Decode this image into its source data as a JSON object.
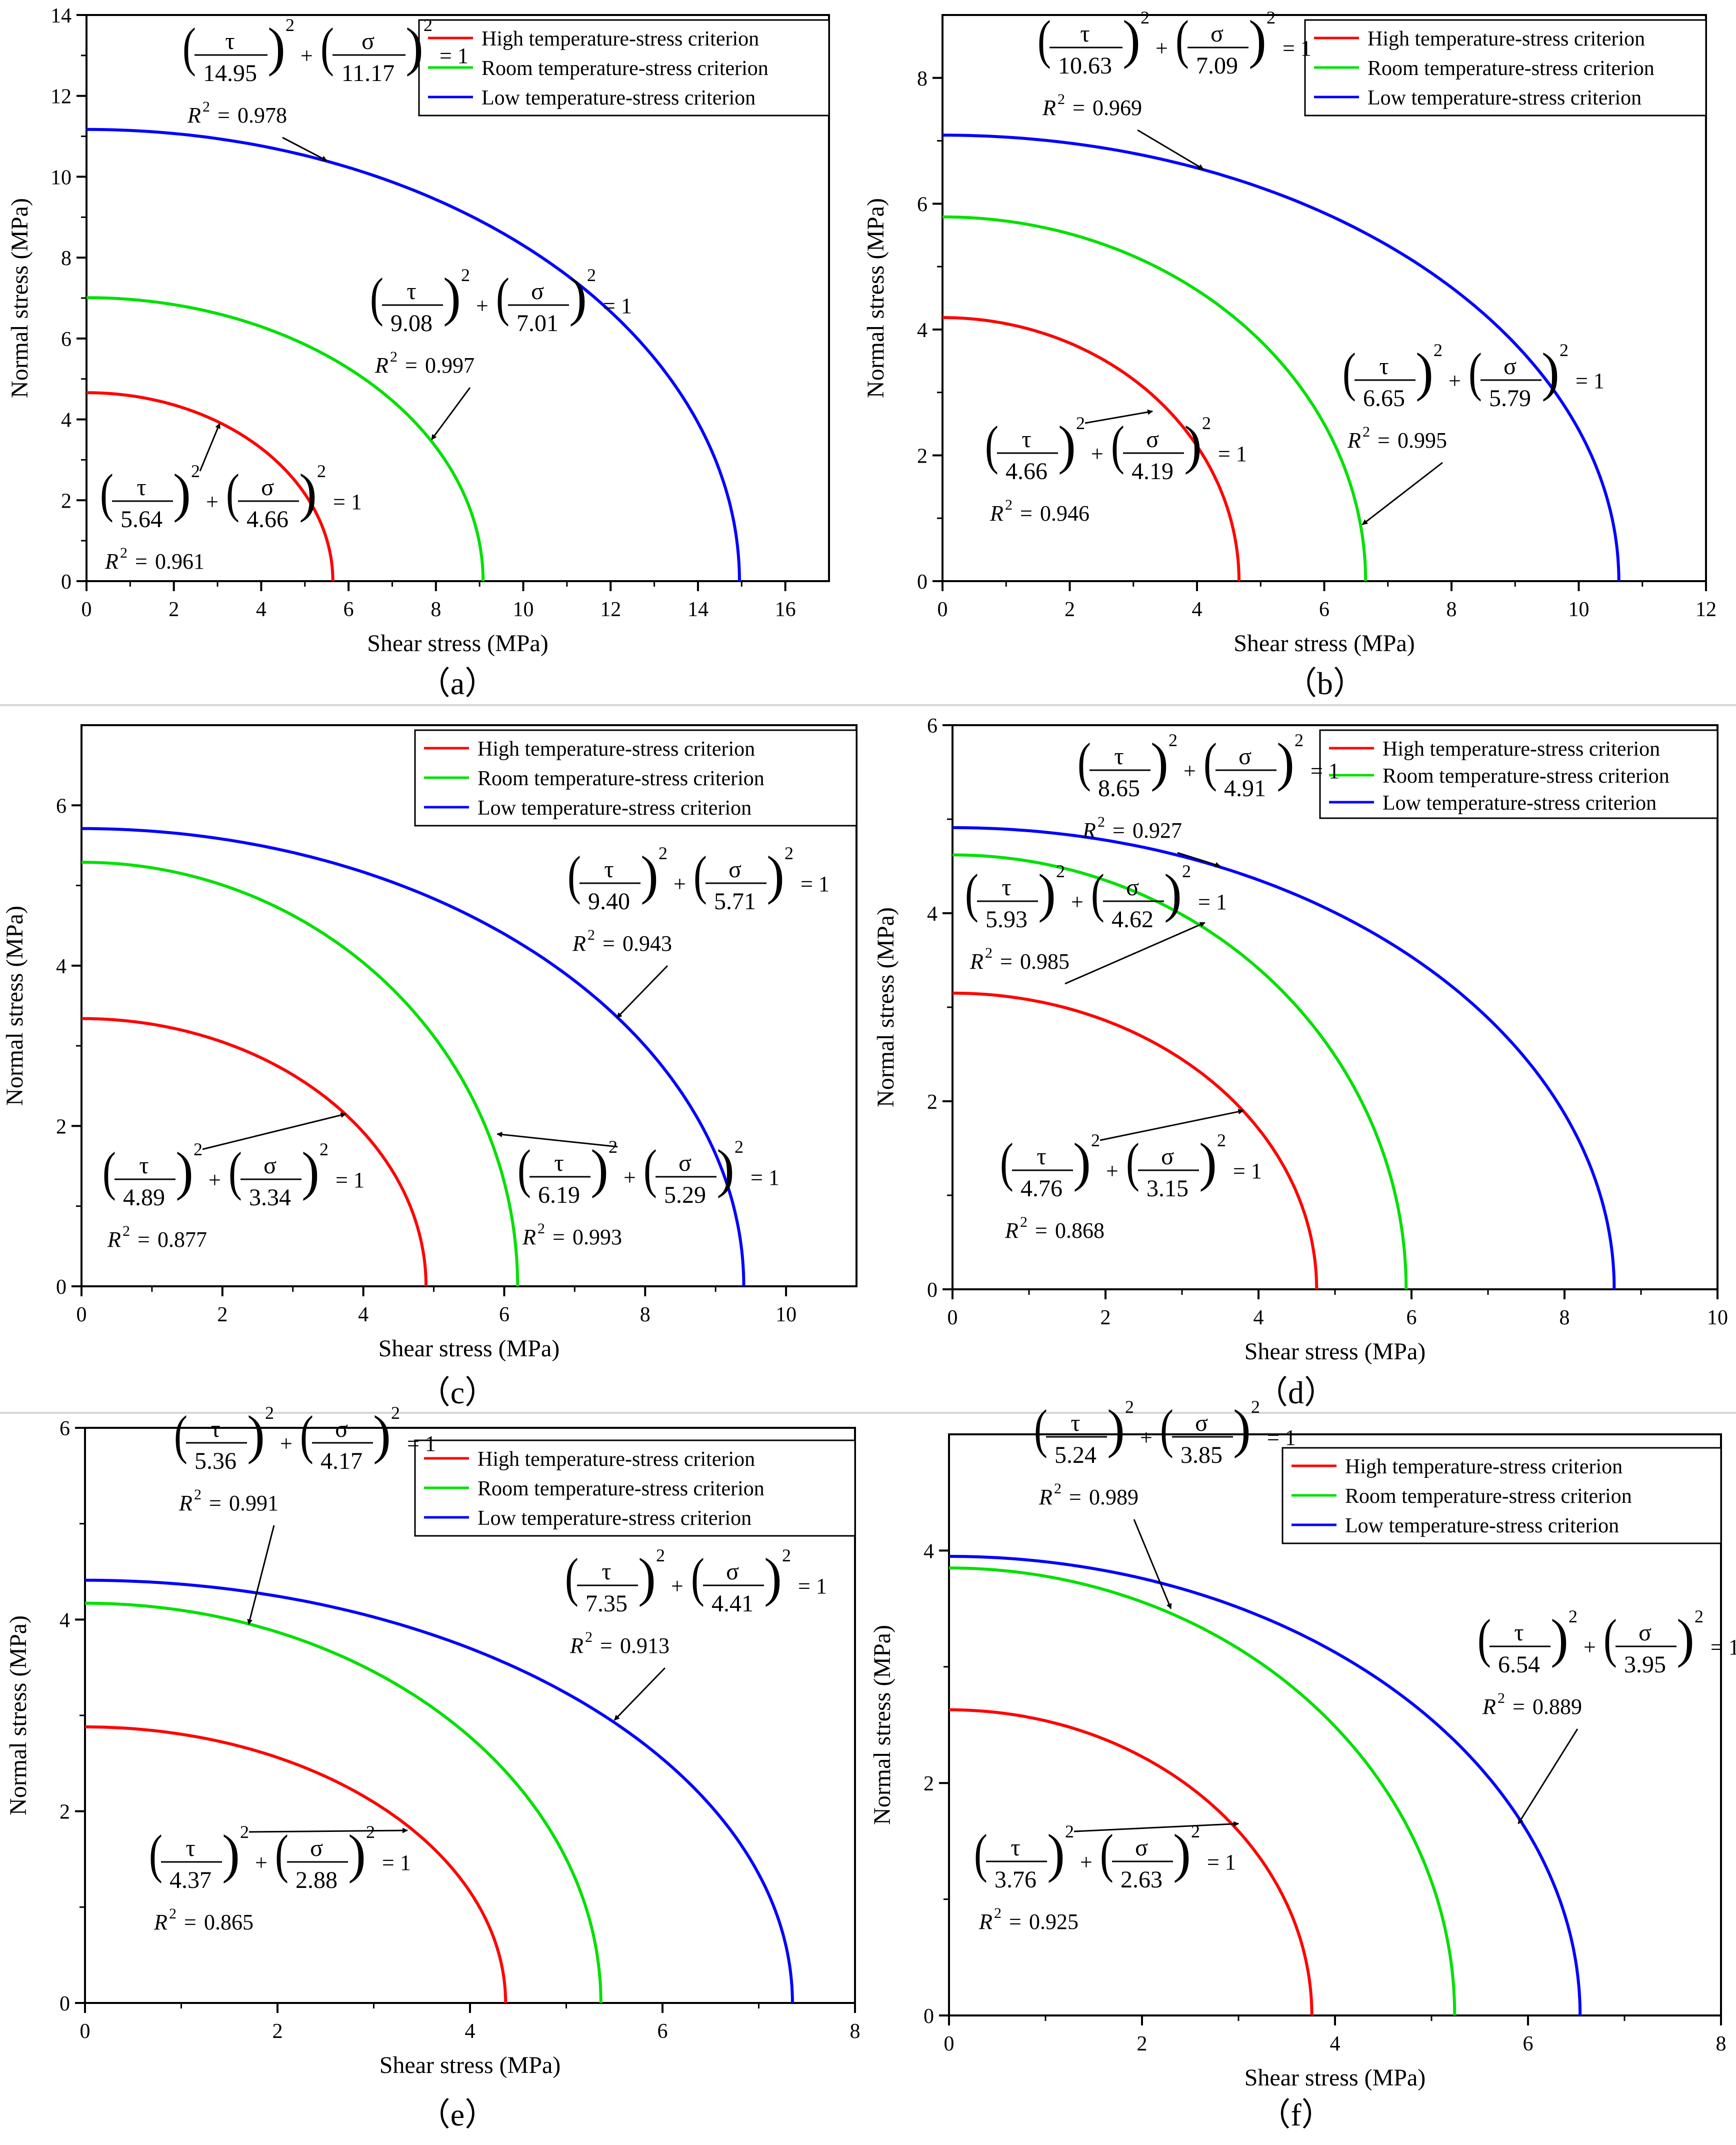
{
  "figure": {
    "legend_labels": [
      "High temperature-stress criterion",
      "Room temperature-stress criterion",
      "Low temperature-stress criterion"
    ],
    "series_colors": [
      "#ff0000",
      "#00e000",
      "#0000ff"
    ],
    "equation_template": {
      "tau": "τ",
      "sigma": "σ",
      "plus": "+",
      "equals": "= 1",
      "exponent": "2",
      "r2_prefix": "R",
      "r2_sup": "2",
      "r2_equals": "="
    }
  },
  "chart_data": [
    {
      "type": "line",
      "panel_label": "（a）",
      "title": "",
      "xlabel": "Shear stress (MPa)",
      "ylabel": "Normal stress (MPa)",
      "xlim": [
        0,
        17
      ],
      "ylim": [
        0,
        14
      ],
      "xticks": [
        0,
        2,
        4,
        6,
        8,
        10,
        12,
        14,
        16
      ],
      "yticks": [
        0,
        2,
        4,
        6,
        8,
        10,
        12,
        14
      ],
      "legend_position": "top-right",
      "series": [
        {
          "name": "High temperature-stress criterion",
          "tau_max": 5.64,
          "sigma_max": 4.66,
          "tau_text": "5.64",
          "sigma_text": "4.66",
          "r2": "0.961",
          "arrow_point": [
            3.05,
            3.9
          ]
        },
        {
          "name": "Room temperature-stress criterion",
          "tau_max": 9.08,
          "sigma_max": 7.01,
          "tau_text": "9.08",
          "sigma_text": "7.01",
          "r2": "0.997",
          "arrow_point": [
            7.9,
            3.5
          ]
        },
        {
          "name": "Low temperature-stress criterion",
          "tau_max": 14.95,
          "sigma_max": 11.17,
          "tau_text": "14.95",
          "sigma_text": "11.17",
          "r2": "0.978",
          "arrow_point": [
            5.5,
            10.4
          ]
        }
      ]
    },
    {
      "type": "line",
      "panel_label": "（b）",
      "title": "",
      "xlabel": "Shear stress (MPa)",
      "ylabel": "Normal stress (MPa)",
      "xlim": [
        0,
        12
      ],
      "ylim": [
        0,
        9
      ],
      "xticks": [
        0,
        2,
        4,
        6,
        8,
        10,
        12
      ],
      "yticks": [
        0,
        2,
        4,
        6,
        8
      ],
      "legend_position": "top-right",
      "series": [
        {
          "name": "High temperature-stress criterion",
          "tau_max": 4.66,
          "sigma_max": 4.19,
          "tau_text": "4.66",
          "sigma_text": "4.19",
          "r2": "0.946",
          "arrow_point": [
            3.3,
            2.7
          ]
        },
        {
          "name": "Room temperature-stress criterion",
          "tau_max": 6.65,
          "sigma_max": 5.79,
          "tau_text": "6.65",
          "sigma_text": "5.79",
          "r2": "0.995",
          "arrow_point": [
            6.6,
            0.9
          ]
        },
        {
          "name": "Low temperature-stress criterion",
          "tau_max": 10.63,
          "sigma_max": 7.09,
          "tau_text": "10.63",
          "sigma_text": "7.09",
          "r2": "0.969",
          "arrow_point": [
            4.1,
            6.55
          ]
        }
      ]
    },
    {
      "type": "line",
      "panel_label": "（c）",
      "title": "",
      "xlabel": "Shear stress (MPa)",
      "ylabel": "Normal stress (MPa)",
      "xlim": [
        0,
        11
      ],
      "ylim": [
        0,
        7
      ],
      "xticks": [
        0,
        2,
        4,
        6,
        8,
        10
      ],
      "yticks": [
        0,
        2,
        4,
        6
      ],
      "legend_position": "top-right",
      "series": [
        {
          "name": "High temperature-stress criterion",
          "tau_max": 4.89,
          "sigma_max": 3.34,
          "tau_text": "4.89",
          "sigma_text": "3.34",
          "r2": "0.877",
          "arrow_point": [
            3.75,
            2.15
          ]
        },
        {
          "name": "Room temperature-stress criterion",
          "tau_max": 6.19,
          "sigma_max": 5.29,
          "tau_text": "6.19",
          "sigma_text": "5.29",
          "r2": "0.993",
          "arrow_point": [
            5.9,
            1.9
          ]
        },
        {
          "name": "Low temperature-stress criterion",
          "tau_max": 9.4,
          "sigma_max": 5.71,
          "tau_text": "9.40",
          "sigma_text": "5.71",
          "r2": "0.943",
          "arrow_point": [
            7.6,
            3.35
          ]
        }
      ]
    },
    {
      "type": "line",
      "panel_label": "（d）",
      "title": "",
      "xlabel": "Shear stress (MPa)",
      "ylabel": "Normal stress (MPa)",
      "xlim": [
        0,
        10
      ],
      "ylim": [
        0,
        6
      ],
      "xticks": [
        0,
        2,
        4,
        6,
        8,
        10
      ],
      "yticks": [
        0,
        2,
        4,
        6
      ],
      "legend_position": "top-right",
      "series": [
        {
          "name": "High temperature-stress criterion",
          "tau_max": 4.76,
          "sigma_max": 3.15,
          "tau_text": "4.76",
          "sigma_text": "3.15",
          "r2": "0.868",
          "arrow_point": [
            3.8,
            1.9
          ]
        },
        {
          "name": "Room temperature-stress criterion",
          "tau_max": 5.93,
          "sigma_max": 4.62,
          "tau_text": "5.93",
          "sigma_text": "4.62",
          "r2": "0.985",
          "arrow_point": [
            3.3,
            3.9
          ]
        },
        {
          "name": "Low temperature-stress criterion",
          "tau_max": 8.65,
          "sigma_max": 4.91,
          "tau_text": "8.65",
          "sigma_text": "4.91",
          "r2": "0.927",
          "arrow_point": [
            3.5,
            4.5
          ]
        }
      ]
    },
    {
      "type": "line",
      "panel_label": "（e）",
      "title": "",
      "xlabel": "Shear stress (MPa)",
      "ylabel": "Normal stress (MPa)",
      "xlim": [
        0,
        8
      ],
      "ylim": [
        0,
        6
      ],
      "xticks": [
        0,
        2,
        4,
        6,
        8
      ],
      "yticks": [
        0,
        2,
        4,
        6
      ],
      "legend_position": "top-right",
      "series": [
        {
          "name": "High temperature-stress criterion",
          "tau_max": 4.37,
          "sigma_max": 2.88,
          "tau_text": "4.37",
          "sigma_text": "2.88",
          "r2": "0.865",
          "arrow_point": [
            3.35,
            1.8
          ]
        },
        {
          "name": "Room temperature-stress criterion",
          "tau_max": 5.36,
          "sigma_max": 4.17,
          "tau_text": "5.36",
          "sigma_text": "4.17",
          "r2": "0.991",
          "arrow_point": [
            1.7,
            3.95
          ]
        },
        {
          "name": "Low temperature-stress criterion",
          "tau_max": 7.35,
          "sigma_max": 4.41,
          "tau_text": "7.35",
          "sigma_text": "4.41",
          "r2": "0.913",
          "arrow_point": [
            5.5,
            2.95
          ]
        }
      ]
    },
    {
      "type": "line",
      "panel_label": "（f）",
      "title": "",
      "xlabel": "Shear stress (MPa)",
      "ylabel": "Normal stress (MPa)",
      "xlim": [
        0,
        8
      ],
      "ylim": [
        0,
        5
      ],
      "xticks": [
        0,
        2,
        4,
        6,
        8
      ],
      "yticks": [
        0,
        2,
        4
      ],
      "legend_position": "top-right",
      "series": [
        {
          "name": "High temperature-stress criterion",
          "tau_max": 3.76,
          "sigma_max": 2.63,
          "tau_text": "3.76",
          "sigma_text": "2.63",
          "r2": "0.925",
          "arrow_point": [
            3.0,
            1.65
          ]
        },
        {
          "name": "Room temperature-stress criterion",
          "tau_max": 5.24,
          "sigma_max": 3.85,
          "tau_text": "5.24",
          "sigma_text": "3.85",
          "r2": "0.989",
          "arrow_point": [
            2.3,
            3.5
          ]
        },
        {
          "name": "Low temperature-stress criterion",
          "tau_max": 6.54,
          "sigma_max": 3.95,
          "tau_text": "6.54",
          "sigma_text": "3.95",
          "r2": "0.889",
          "arrow_point": [
            5.9,
            1.65
          ]
        }
      ]
    }
  ]
}
